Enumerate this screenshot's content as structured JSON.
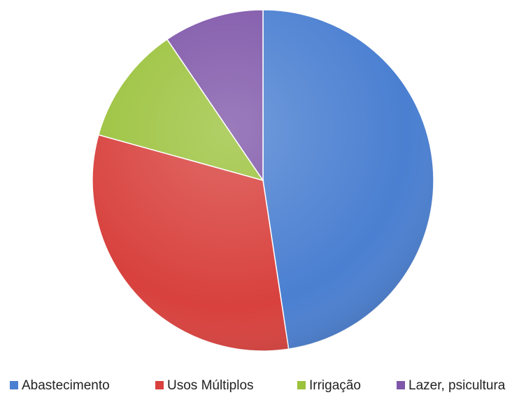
{
  "chart_data": {
    "type": "pie",
    "categories": [
      "Abastecimento",
      "Usos Múltiplos",
      "Irrigação",
      "Lazer, psicultura"
    ],
    "values": [
      47.6,
      31.7,
      11.2,
      9.5
    ],
    "colors": [
      "#4a7fd1",
      "#d8413d",
      "#9bc23c",
      "#7f56a9"
    ],
    "legend": "bottom"
  }
}
